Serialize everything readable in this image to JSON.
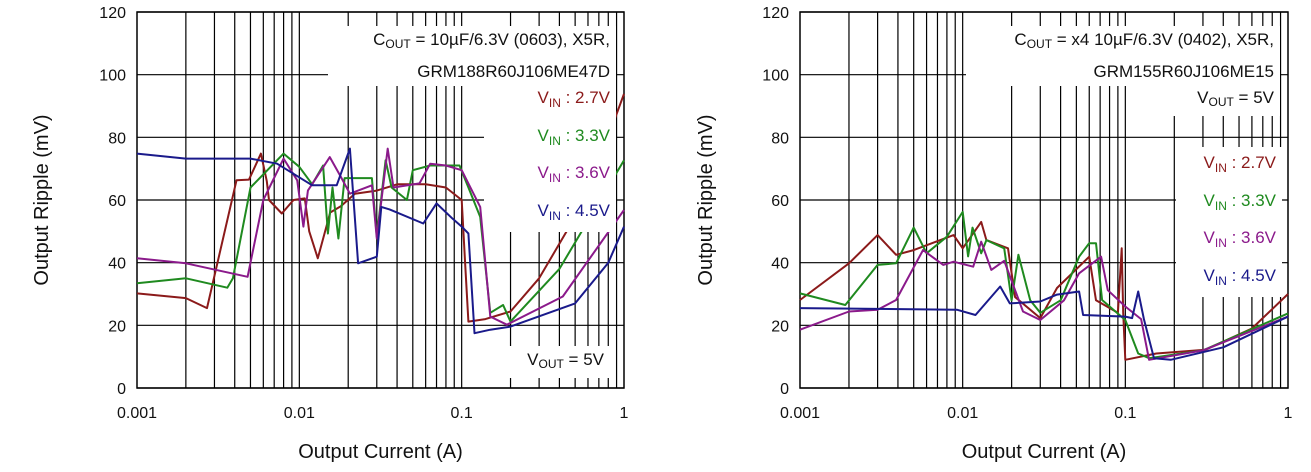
{
  "chart_data": [
    {
      "type": "line",
      "xscale": "log",
      "xlim": [
        0.001,
        1
      ],
      "ylim": [
        0,
        120
      ],
      "grid": true,
      "xlabel": "Output Current (A)",
      "ylabel": "Output Ripple (mV)",
      "xticks": [
        "0.001",
        "0.01",
        "0.1",
        "1"
      ],
      "yticks": [
        "0",
        "20",
        "40",
        "60",
        "80",
        "100",
        "120"
      ],
      "annotation": {
        "line1_main": "C",
        "line1_sub": "OUT",
        "line1_rest": " = 10µF/6.3V (0603), X5R,",
        "line2": "GRM188R60J106ME47D"
      },
      "vout": {
        "main": "V",
        "sub": "OUT",
        "rest": " = 5V"
      },
      "legend_placement": "right",
      "series": [
        {
          "name_main": "V",
          "name_sub": "IN",
          "name_rest": " : 2.7V",
          "color": "#8b1a1a",
          "x": [
            0.001,
            0.002,
            0.0027,
            0.0041,
            0.0049,
            0.0058,
            0.0063,
            0.0065,
            0.0078,
            0.0092,
            0.0108,
            0.0115,
            0.013,
            0.0155,
            0.018,
            0.022,
            0.03,
            0.04,
            0.06,
            0.08,
            0.1,
            0.105,
            0.11,
            0.14,
            0.2,
            0.3,
            0.5,
            0.7,
            1
          ],
          "y": [
            30.2,
            28.7,
            25.5,
            66.3,
            66.5,
            74.8,
            66,
            60,
            55.7,
            60,
            60.5,
            50,
            41.4,
            56,
            58,
            62,
            63,
            65,
            65,
            64,
            60,
            40,
            21.2,
            22,
            24.4,
            35,
            54.6,
            72,
            93.9
          ]
        },
        {
          "name_main": "V",
          "name_sub": "IN",
          "name_rest": " : 3.3V",
          "color": "#1f8a1f",
          "x": [
            0.001,
            0.002,
            0.0036,
            0.0039,
            0.005,
            0.008,
            0.01,
            0.012,
            0.014,
            0.015,
            0.016,
            0.0174,
            0.019,
            0.028,
            0.03,
            0.034,
            0.037,
            0.046,
            0.05,
            0.064,
            0.08,
            0.097,
            0.11,
            0.13,
            0.15,
            0.18,
            0.2,
            0.4,
            1
          ],
          "y": [
            33.4,
            35,
            32,
            35,
            64,
            74.8,
            70.6,
            65,
            71,
            49.3,
            64,
            47.7,
            67,
            67,
            48.3,
            72.7,
            64,
            60,
            69.5,
            71,
            71,
            71,
            64,
            54.6,
            24,
            26.5,
            21.2,
            38,
            72.7
          ]
        },
        {
          "name_main": "V",
          "name_sub": "IN",
          "name_rest": " : 3.6V",
          "color": "#8b1a8b",
          "x": [
            0.001,
            0.002,
            0.0048,
            0.006,
            0.008,
            0.0097,
            0.0106,
            0.0113,
            0.0154,
            0.018,
            0.0205,
            0.028,
            0.03,
            0.035,
            0.038,
            0.055,
            0.064,
            0.08,
            0.1,
            0.13,
            0.15,
            0.19,
            0.42,
            1
          ],
          "y": [
            41.4,
            39.8,
            35.5,
            60,
            73.2,
            66.3,
            51.5,
            63,
            73.7,
            67.4,
            62,
            64.7,
            47.7,
            76.4,
            64,
            65.3,
            71.6,
            71,
            69.5,
            57.8,
            22.8,
            20.2,
            29.2,
            56.8
          ]
        },
        {
          "name_main": "V",
          "name_sub": "IN",
          "name_rest": " : 4.5V",
          "color": "#1a1a8b",
          "x": [
            0.001,
            0.002,
            0.005,
            0.0073,
            0.012,
            0.017,
            0.0205,
            0.023,
            0.03,
            0.032,
            0.036,
            0.058,
            0.07,
            0.088,
            0.1,
            0.11,
            0.12,
            0.15,
            0.2,
            0.5,
            0.8,
            1
          ],
          "y": [
            74.8,
            73.2,
            73.2,
            71.6,
            64.7,
            64.7,
            76.4,
            39.8,
            41.9,
            57.8,
            57,
            52.5,
            58.9,
            54,
            51.5,
            49.3,
            17.5,
            18.6,
            19.6,
            27,
            40,
            51.5
          ]
        }
      ]
    },
    {
      "type": "line",
      "xscale": "log",
      "xlim": [
        0.001,
        1
      ],
      "ylim": [
        0,
        120
      ],
      "grid": true,
      "xlabel": "Output Current (A)",
      "ylabel": "Output Ripple (mV)",
      "xticks": [
        "0.001",
        "0.01",
        "0.1",
        "1"
      ],
      "yticks": [
        "0",
        "20",
        "40",
        "60",
        "80",
        "100",
        "120"
      ],
      "annotation": {
        "line1_main": "C",
        "line1_sub": "OUT",
        "line1_rest": " = x4 10µF/6.3V (0402), X5R,",
        "line2": "GRM155R60J106ME15"
      },
      "vout": {
        "main": "V",
        "sub": "OUT",
        "rest": " = 5V"
      },
      "legend_placement": "right",
      "series": [
        {
          "name_main": "V",
          "name_sub": "IN",
          "name_rest": " : 2.7V",
          "color": "#8b1a1a",
          "x": [
            0.001,
            0.002,
            0.003,
            0.0039,
            0.005,
            0.0088,
            0.01,
            0.013,
            0.014,
            0.019,
            0.021,
            0.03,
            0.038,
            0.06,
            0.066,
            0.09,
            0.095,
            0.097,
            0.1,
            0.155,
            0.31,
            0.6,
            1
          ],
          "y": [
            28.1,
            39.8,
            48.8,
            42.5,
            44,
            48.8,
            44.6,
            53,
            47.2,
            44.6,
            29,
            22.3,
            31.9,
            41.9,
            28,
            24,
            44.6,
            24,
            9,
            11,
            12.2,
            19,
            30
          ]
        },
        {
          "name_main": "V",
          "name_sub": "IN",
          "name_rest": " : 3.3V",
          "color": "#1f8a1f",
          "x": [
            0.001,
            0.0019,
            0.003,
            0.0039,
            0.005,
            0.006,
            0.008,
            0.01,
            0.0108,
            0.0115,
            0.013,
            0.014,
            0.018,
            0.02,
            0.022,
            0.026,
            0.03,
            0.04,
            0.052,
            0.06,
            0.066,
            0.072,
            0.1,
            0.12,
            0.14,
            0.3,
            1
          ],
          "y": [
            30.2,
            26.5,
            39.3,
            39.8,
            51.2,
            43,
            48.3,
            56.2,
            42,
            51.2,
            43,
            47.2,
            44.6,
            28,
            42.5,
            28,
            24,
            28,
            41.9,
            46.2,
            46.2,
            28.1,
            21.7,
            11,
            9.5,
            12,
            23.8
          ]
        },
        {
          "name_main": "V",
          "name_sub": "IN",
          "name_rest": " : 3.6V",
          "color": "#8b1a8b",
          "x": [
            0.001,
            0.002,
            0.003,
            0.0039,
            0.0057,
            0.0076,
            0.0088,
            0.0116,
            0.013,
            0.015,
            0.018,
            0.0235,
            0.03,
            0.042,
            0.052,
            0.071,
            0.078,
            0.1,
            0.125,
            0.14,
            0.3,
            1
          ],
          "y": [
            18.6,
            24.4,
            25,
            28.1,
            44,
            39.3,
            40.3,
            38.7,
            46.7,
            37.7,
            40.6,
            24.4,
            21.7,
            28,
            36.6,
            41.9,
            31.2,
            26,
            22,
            9,
            12,
            22.8
          ]
        },
        {
          "name_main": "V",
          "name_sub": "IN",
          "name_rest": " : 4.5V",
          "color": "#1a1a8b",
          "x": [
            0.001,
            0.0092,
            0.012,
            0.017,
            0.0195,
            0.03,
            0.038,
            0.052,
            0.055,
            0.1,
            0.11,
            0.12,
            0.13,
            0.15,
            0.19,
            0.4,
            1
          ],
          "y": [
            25.5,
            25,
            23.3,
            32.4,
            27,
            27.6,
            29.8,
            30.8,
            23.3,
            22.8,
            22.3,
            30.8,
            22,
            9.5,
            9,
            13,
            22.8
          ]
        }
      ]
    }
  ]
}
